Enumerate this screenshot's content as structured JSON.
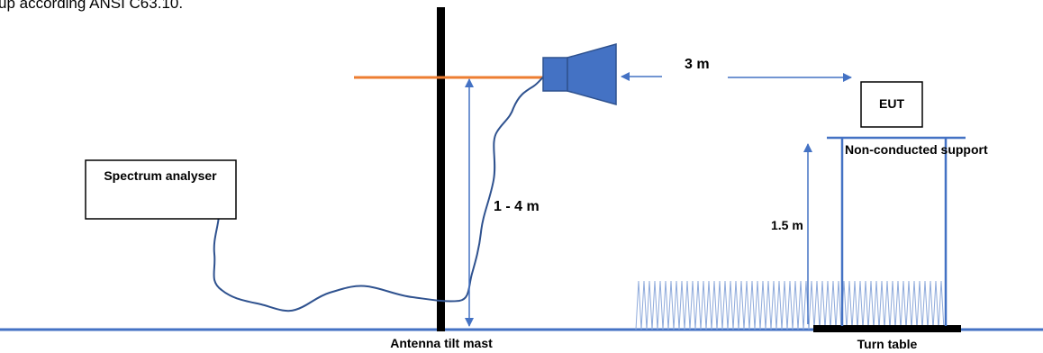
{
  "caption": "up according ANSI C63.10.",
  "labels": {
    "spectrum_analyser": "Spectrum analyser",
    "distance": "3 m",
    "eut": "EUT",
    "support": "Non-conducted support",
    "height_range": "1 - 4 m",
    "table_height": "1.5 m",
    "mast": "Antenna tilt mast",
    "turn_table": "Turn table"
  },
  "colors": {
    "line_blue": "#4472c4",
    "horn_blue": "#4472c4",
    "horn_stroke": "#2f528f",
    "orange": "#ed7d31",
    "black": "#000000"
  }
}
